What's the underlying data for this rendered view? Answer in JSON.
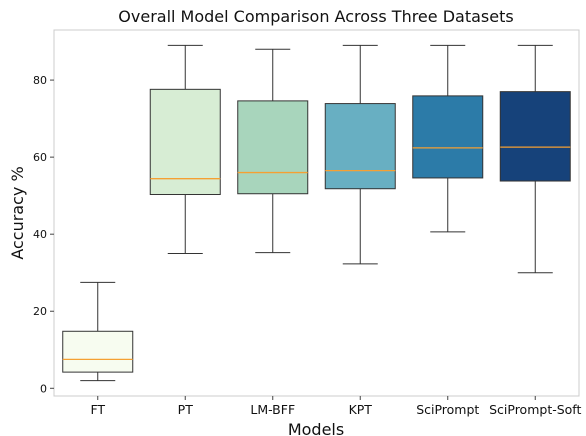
{
  "chart_data": {
    "type": "box",
    "title": "Overall Model Comparison Across Three Datasets",
    "xlabel": "Models",
    "ylabel": "Accuracy %",
    "ylim": [
      -2,
      93
    ],
    "yticks": [
      0,
      20,
      40,
      60,
      80
    ],
    "grid": false,
    "median_color": "#f5a033",
    "series": [
      {
        "name": "FT",
        "color": "#f7fcf0",
        "min": 2.0,
        "q1": 4.2,
        "median": 7.5,
        "q3": 14.8,
        "max": 27.5
      },
      {
        "name": "PT",
        "color": "#d7edd4",
        "min": 35.0,
        "q1": 50.3,
        "median": 54.4,
        "q3": 77.6,
        "max": 89.0
      },
      {
        "name": "LM-BFF",
        "color": "#a8d5bc",
        "min": 35.2,
        "q1": 50.5,
        "median": 56.0,
        "q3": 74.6,
        "max": 88.0
      },
      {
        "name": "KPT",
        "color": "#68afc2",
        "min": 32.3,
        "q1": 51.8,
        "median": 56.5,
        "q3": 73.9,
        "max": 89.0
      },
      {
        "name": "SciPrompt",
        "color": "#2c7ba8",
        "min": 40.6,
        "q1": 54.6,
        "median": 62.4,
        "q3": 75.9,
        "max": 89.0
      },
      {
        "name": "SciPrompt-Soft",
        "color": "#16427a",
        "min": 30.0,
        "q1": 53.8,
        "median": 62.6,
        "q3": 77.0,
        "max": 89.0
      }
    ]
  }
}
